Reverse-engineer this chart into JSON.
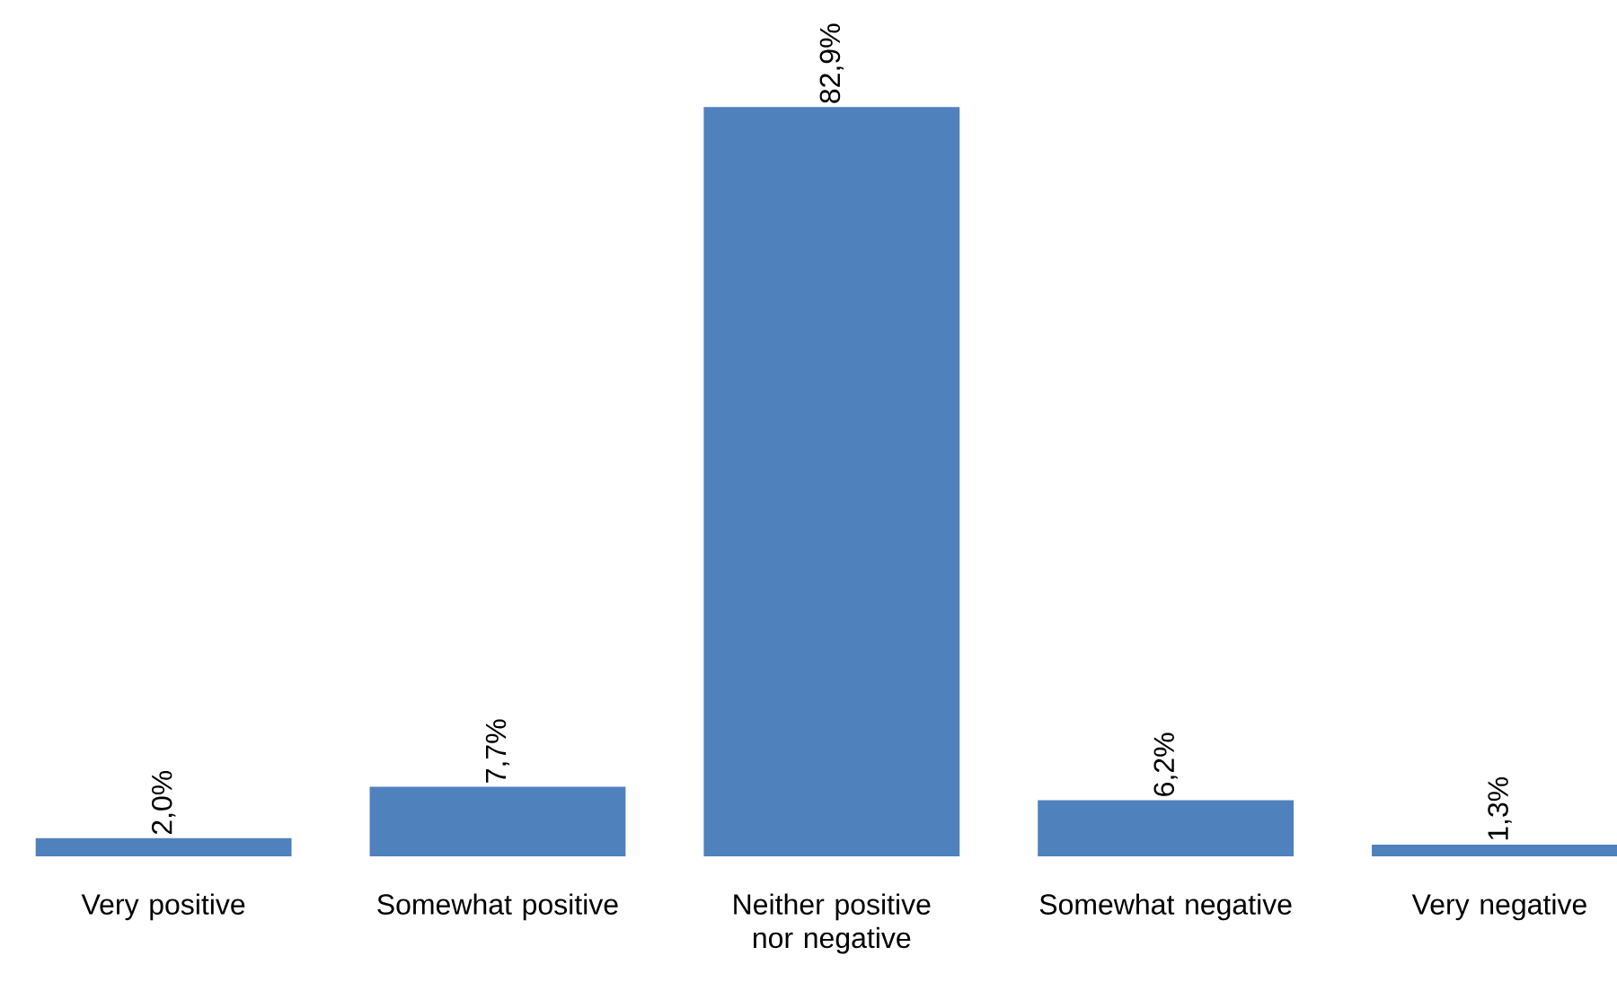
{
  "chart_data": {
    "type": "bar",
    "categories": [
      "Very positive",
      "Somewhat positive",
      "Neither positive nor negative",
      "Somewhat negative",
      "Very negative"
    ],
    "values": [
      2.0,
      7.7,
      82.9,
      6.2,
      1.3
    ],
    "value_labels": [
      "2,0%",
      "7,7%",
      "82,9%",
      "6,2%",
      "1,3%"
    ],
    "color": "#4f81bd"
  }
}
